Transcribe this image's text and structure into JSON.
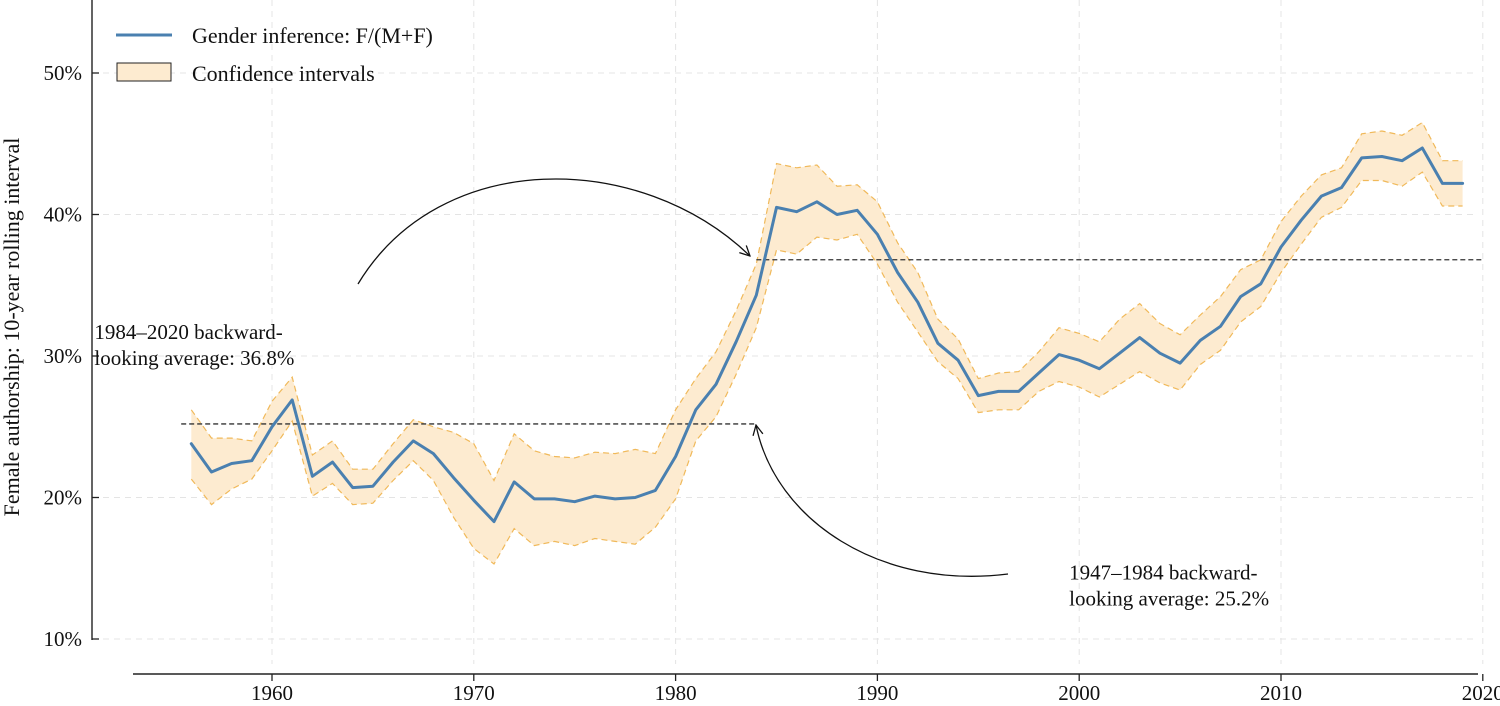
{
  "chart_data": {
    "type": "line",
    "title": "",
    "xlabel": "",
    "ylabel": "Female authorship: 10-year rolling interval",
    "xlim": [
      1953,
      2020
    ],
    "ylim": [
      7,
      55
    ],
    "grid": true,
    "legend_position": "top-left",
    "x_ticks": [
      1960,
      1970,
      1980,
      1990,
      2000,
      2010,
      2020
    ],
    "x_tick_labels": [
      "1960",
      "1970",
      "1980",
      "1990",
      "2000",
      "2010",
      "2020"
    ],
    "y_ticks": [
      10,
      20,
      30,
      40,
      50
    ],
    "y_tick_labels": [
      "10%",
      "20%",
      "30%",
      "40%",
      "50%"
    ],
    "legend": [
      {
        "label": "Gender inference: F/(M+F)",
        "kind": "line",
        "color": "#4a80b0"
      },
      {
        "label": "Confidence intervals",
        "kind": "band",
        "color": "#fdebd0",
        "edge": "#f0b95a"
      }
    ],
    "x": [
      1956,
      1957,
      1958,
      1959,
      1960,
      1961,
      1962,
      1963,
      1964,
      1965,
      1966,
      1967,
      1968,
      1969,
      1970,
      1971,
      1972,
      1973,
      1974,
      1975,
      1976,
      1977,
      1978,
      1979,
      1980,
      1981,
      1982,
      1983,
      1984,
      1985,
      1986,
      1987,
      1988,
      1989,
      1990,
      1991,
      1992,
      1993,
      1994,
      1995,
      1996,
      1997,
      1998,
      1999,
      2000,
      2001,
      2002,
      2003,
      2004,
      2005,
      2006,
      2007,
      2008,
      2009,
      2010,
      2011,
      2012,
      2013,
      2014,
      2015,
      2016,
      2017,
      2018,
      2019
    ],
    "series": [
      {
        "name": "Gender inference: F/(M+F)",
        "values": [
          23.8,
          21.8,
          22.4,
          22.6,
          25.0,
          26.9,
          21.5,
          22.5,
          20.7,
          20.8,
          22.5,
          24.0,
          23.1,
          21.4,
          19.8,
          18.3,
          21.1,
          19.9,
          19.9,
          19.7,
          20.1,
          19.9,
          20.0,
          20.5,
          22.9,
          26.2,
          28.0,
          31.0,
          34.3,
          40.5,
          40.2,
          40.9,
          40.0,
          40.3,
          38.6,
          35.9,
          33.8,
          30.9,
          29.7,
          27.2,
          27.5,
          27.5,
          28.8,
          30.1,
          29.7,
          29.1,
          30.2,
          31.3,
          30.2,
          29.5,
          31.1,
          32.1,
          34.2,
          35.1,
          37.7,
          39.6,
          41.3,
          41.9,
          44.0,
          44.1,
          43.8,
          44.7,
          42.2,
          42.2
        ]
      }
    ],
    "confidence_upper": [
      26.2,
      24.2,
      24.2,
      24.0,
      26.8,
      28.5,
      23.0,
      24.0,
      22.0,
      22.0,
      23.8,
      25.5,
      25.0,
      24.6,
      23.8,
      21.2,
      24.5,
      23.3,
      22.9,
      22.8,
      23.2,
      23.1,
      23.4,
      23.1,
      26.2,
      28.4,
      30.3,
      33.2,
      36.5,
      43.6,
      43.3,
      43.5,
      42.0,
      42.1,
      40.9,
      38.0,
      35.9,
      32.6,
      31.2,
      28.4,
      28.8,
      28.9,
      30.3,
      32.0,
      31.6,
      31.0,
      32.6,
      33.7,
      32.3,
      31.5,
      32.9,
      34.2,
      36.1,
      36.8,
      39.5,
      41.3,
      42.8,
      43.3,
      45.7,
      45.9,
      45.6,
      46.5,
      43.8,
      43.8
    ],
    "confidence_lower": [
      21.3,
      19.5,
      20.6,
      21.3,
      23.3,
      25.4,
      20.1,
      21.0,
      19.5,
      19.6,
      21.2,
      22.6,
      21.2,
      18.6,
      16.4,
      15.3,
      17.8,
      16.6,
      16.9,
      16.6,
      17.1,
      16.9,
      16.7,
      17.9,
      19.9,
      24.0,
      25.7,
      28.7,
      32.0,
      37.5,
      37.2,
      38.4,
      38.2,
      38.6,
      36.5,
      33.8,
      31.7,
      29.6,
      28.4,
      26.0,
      26.2,
      26.2,
      27.5,
      28.2,
      27.8,
      27.1,
      28.0,
      28.9,
      28.1,
      27.6,
      29.4,
      30.4,
      32.4,
      33.5,
      35.9,
      37.9,
      39.8,
      40.5,
      42.4,
      42.4,
      42.0,
      43.0,
      40.6,
      40.6
    ],
    "reference_lines": [
      {
        "value": 25.2,
        "x_start": 1955.5,
        "x_end": 1984
      },
      {
        "value": 36.8,
        "x_start": 1984,
        "x_end": 2020
      }
    ],
    "annotations": [
      {
        "lines": [
          "1984–2020 backward-",
          "looking average: 36.8%"
        ],
        "x": 1951.2,
        "y": 31.2
      },
      {
        "lines": [
          "1947–1984 backward-",
          "looking average: 25.2%"
        ],
        "x": 1999.5,
        "y": 14.2
      }
    ]
  }
}
